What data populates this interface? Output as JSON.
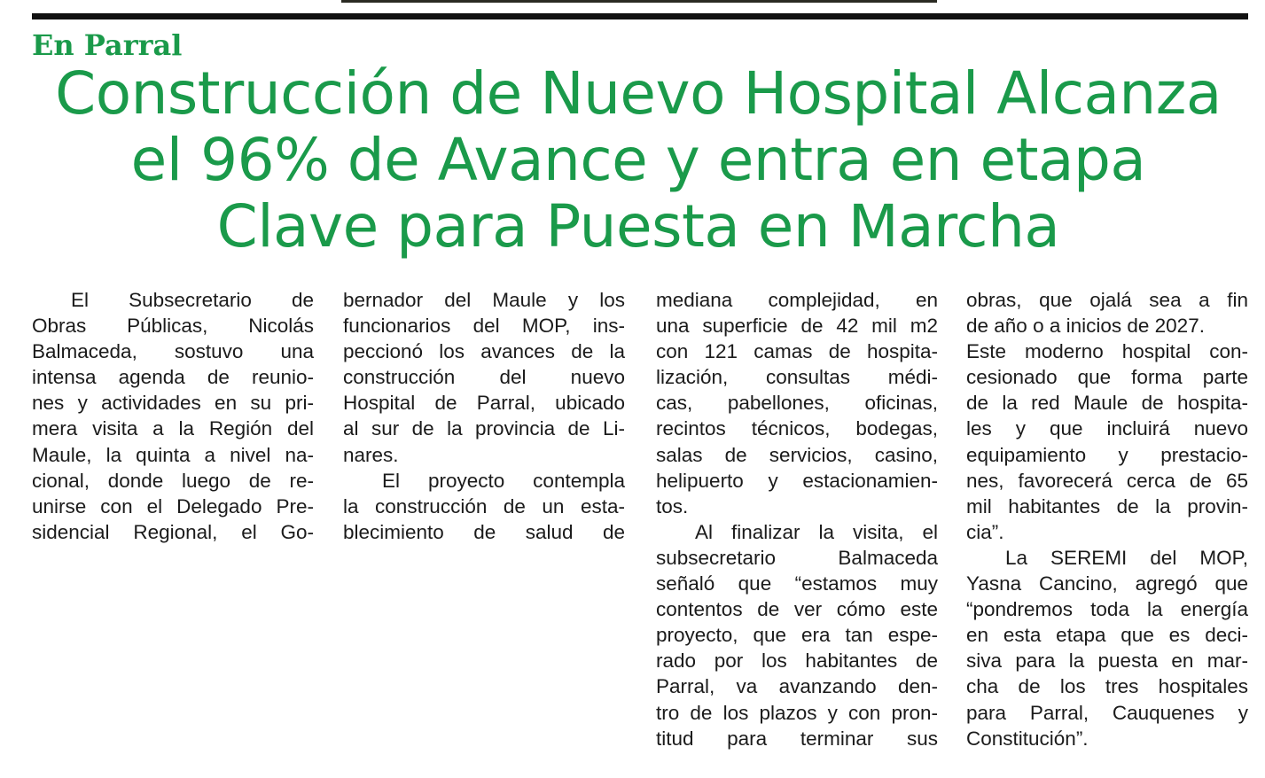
{
  "kicker": "En Parral",
  "headline": [
    "Construcción de Nuevo Hospital Alcanza",
    "el 96% de Avance y entra en etapa",
    "Clave para Puesta en Marcha"
  ],
  "colors": {
    "headline_green": "#1a9a4a",
    "text": "#1b1b1b",
    "rule": "#111111"
  },
  "columns": [
    {
      "paragraphs": [
        {
          "continued": false,
          "lines": [
            "El Subsecretario de",
            "Obras Públicas, Nicolás",
            "Balmaceda, sostuvo una",
            "intensa agenda de reunio-",
            "nes y actividades en su pri-",
            "mera visita a la Región del",
            "Maule, la quinta a nivel na-",
            "cional, donde luego de re-",
            "unirse con el Delegado Pre-",
            "sidencial Regional, el Go-"
          ]
        }
      ]
    },
    {
      "paragraphs": [
        {
          "continued": true,
          "lines": [
            "bernador del Maule y los",
            "funcionarios del MOP, ins-",
            "peccionó los avances de la",
            "construcción del nuevo",
            "Hospital de Parral, ubicado",
            "al sur de la provincia de Li-",
            "nares."
          ]
        },
        {
          "continued": false,
          "lines": [
            "El proyecto contempla",
            "la construcción de un esta-",
            "blecimiento de salud de"
          ]
        }
      ]
    },
    {
      "paragraphs": [
        {
          "continued": true,
          "lines": [
            "mediana complejidad, en",
            "una superficie de 42 mil m2",
            "con 121 camas de hospita-",
            "lización, consultas médi-",
            "cas, pabellones, oficinas,",
            "recintos técnicos, bodegas,",
            "salas de servicios, casino,",
            "helipuerto y estacionamien-",
            "tos."
          ]
        },
        {
          "continued": false,
          "lines": [
            "Al finalizar la visita, el",
            "subsecretario Balmaceda",
            "señaló que “estamos muy",
            "contentos de ver cómo este",
            "proyecto, que era tan espe-",
            "rado por los habitantes de",
            "Parral, va avanzando den-",
            "tro de los plazos y con pron-",
            "titud para terminar sus"
          ]
        }
      ]
    },
    {
      "paragraphs": [
        {
          "continued": true,
          "lines": [
            "obras, que ojalá sea a fin",
            "de año o a inicios de 2027.",
            "Este moderno hospital con-",
            "cesionado que forma parte",
            "de la red Maule de hospita-",
            "les y que incluirá nuevo",
            "equipamiento y prestacio-",
            "nes, favorecerá cerca de 65",
            "mil habitantes de la provin-",
            "cia”."
          ]
        },
        {
          "continued": false,
          "lines": [
            "La SEREMI del MOP,",
            "Yasna Cancino, agregó que",
            "“pondremos toda la energía",
            "en esta etapa que es deci-",
            "siva para la puesta en mar-",
            "cha de los tres hospitales",
            "para Parral, Cauquenes y",
            "Constitución”."
          ]
        }
      ]
    }
  ]
}
